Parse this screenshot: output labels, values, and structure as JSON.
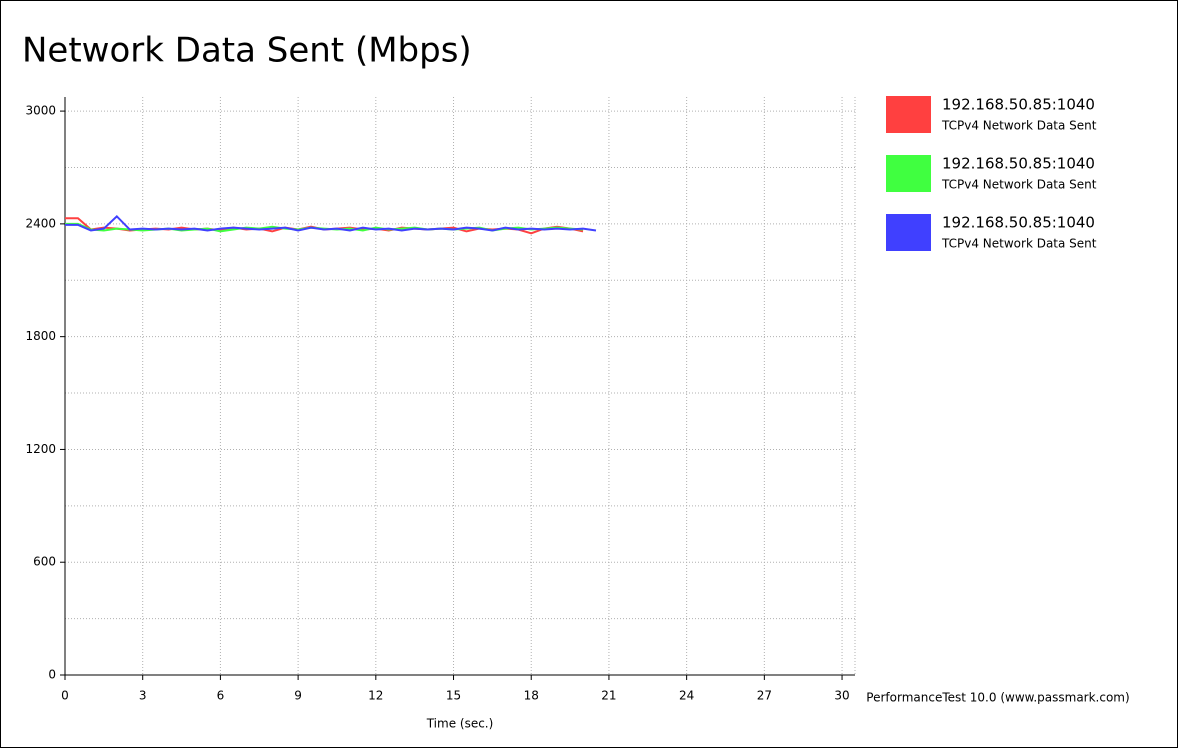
{
  "chart_data": {
    "type": "line",
    "title": "Network Data Sent (Mbps)",
    "x_label": "Time (sec.)",
    "footer": "PerformanceTest 10.0 (www.passmark.com)",
    "x": [
      0,
      0.5,
      1,
      1.5,
      2,
      2.5,
      3,
      3.5,
      4,
      4.5,
      5,
      5.5,
      6,
      6.5,
      7,
      7.5,
      8,
      8.5,
      9,
      9.5,
      10,
      10.5,
      11,
      11.5,
      12,
      12.5,
      13,
      13.5,
      14,
      14.5,
      15,
      15.5,
      16,
      16.5,
      17,
      17.5,
      18,
      18.5,
      19,
      19.5,
      20,
      20.5
    ],
    "series": [
      {
        "name": "192.168.50.85:1040",
        "description": "TCPv4 Network Data Sent",
        "color": "#ff4040",
        "values": [
          2430,
          2430,
          2370,
          2380,
          2375,
          2365,
          2370,
          2375,
          2370,
          2380,
          2370,
          2375,
          2365,
          2380,
          2370,
          2375,
          2360,
          2380,
          2370,
          2385,
          2370,
          2375,
          2380,
          2370,
          2375,
          2365,
          2380,
          2375,
          2370,
          2375,
          2380,
          2360,
          2375,
          2370,
          2375,
          2370,
          2350,
          2375,
          2385,
          2375,
          2360,
          null
        ]
      },
      {
        "name": "192.168.50.85:1040",
        "description": "TCPv4 Network Data Sent",
        "color": "#40ff40",
        "values": [
          2400,
          2400,
          2370,
          2365,
          2375,
          2370,
          2365,
          2370,
          2375,
          2365,
          2370,
          2375,
          2360,
          2370,
          2380,
          2375,
          2385,
          2375,
          2370,
          2380,
          2375,
          2370,
          2375,
          2365,
          2380,
          2370,
          2375,
          2380,
          2370,
          2375,
          2370,
          2375,
          2380,
          2365,
          2375,
          2380,
          2370,
          2375,
          2380,
          2375,
          2370,
          null
        ]
      },
      {
        "name": "192.168.50.85:1040",
        "description": "TCPv4 Network Data Sent",
        "color": "#4040ff",
        "values": [
          2395,
          2395,
          2365,
          2375,
          2440,
          2370,
          2375,
          2370,
          2375,
          2370,
          2375,
          2365,
          2375,
          2380,
          2375,
          2370,
          2375,
          2380,
          2365,
          2380,
          2370,
          2375,
          2365,
          2380,
          2370,
          2375,
          2365,
          2375,
          2370,
          2375,
          2370,
          2380,
          2375,
          2365,
          2380,
          2370,
          2375,
          2370,
          2375,
          2370,
          2375,
          2365
        ]
      }
    ],
    "xlim": [
      0,
      30.5
    ],
    "xticks": [
      0,
      3,
      6,
      9,
      12,
      15,
      18,
      21,
      24,
      27,
      30
    ],
    "ylim": [
      0,
      3075
    ],
    "yticks": [
      0,
      600,
      1200,
      1800,
      2400,
      3000
    ],
    "minor_yticks": [
      300,
      900,
      1500,
      2100,
      2700
    ],
    "grid": true
  }
}
